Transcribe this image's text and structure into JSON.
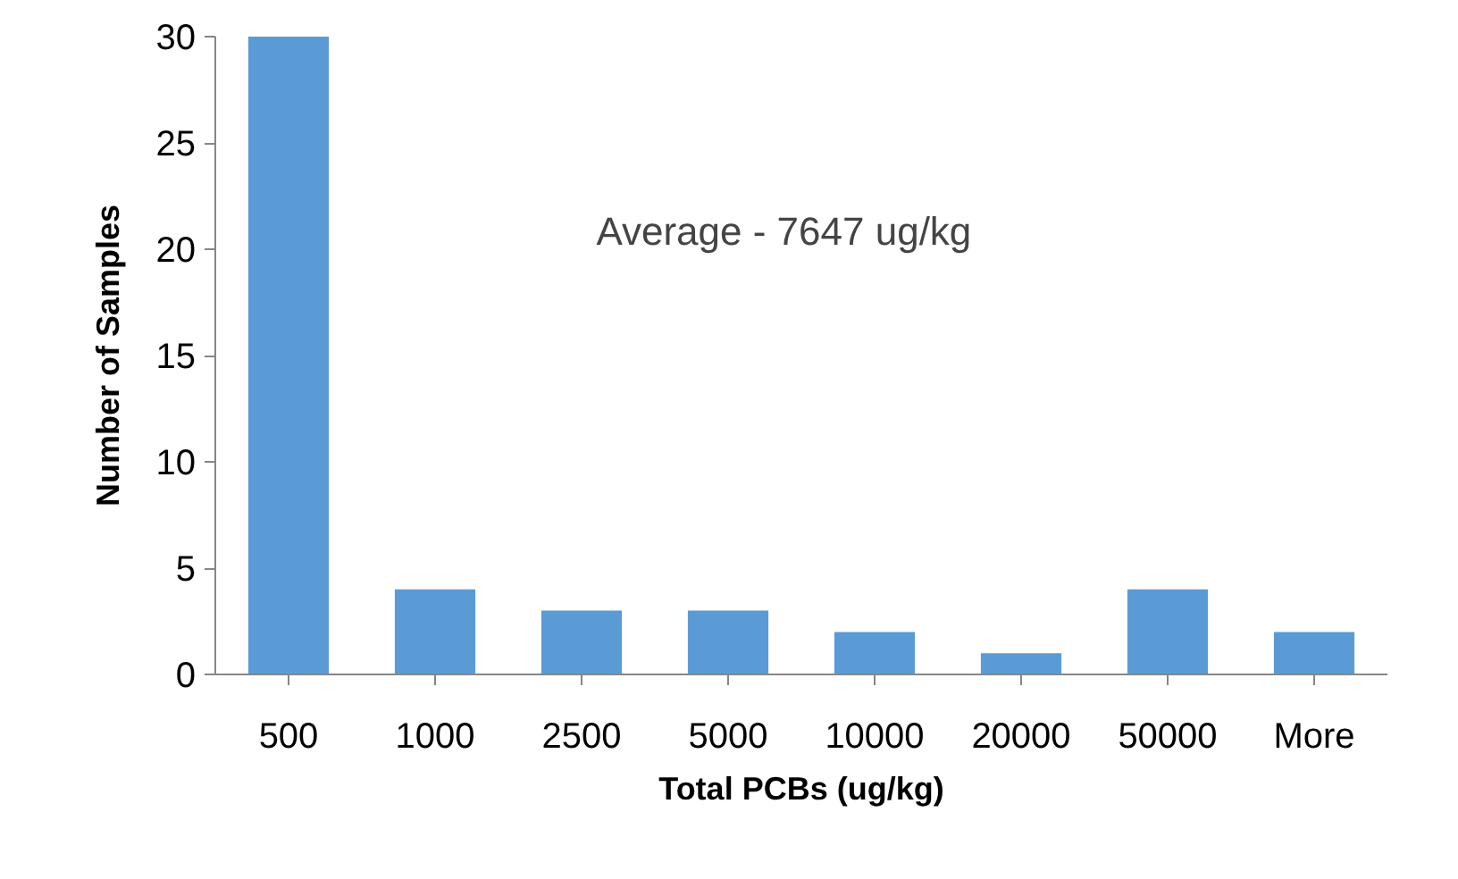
{
  "chart_data": {
    "type": "bar",
    "xlabel": "Total PCBs (ug/kg)",
    "ylabel": "Number of Samples",
    "categories": [
      "500",
      "1000",
      "2500",
      "5000",
      "10000",
      "20000",
      "50000",
      "More"
    ],
    "values": [
      30,
      4,
      3,
      3,
      2,
      1,
      4,
      2
    ],
    "color": "#5b9bd5",
    "ylim": [
      0,
      30
    ],
    "yticks": [
      0,
      5,
      10,
      15,
      20,
      25,
      30
    ],
    "grid": false,
    "annotations": [
      "Average - 7647 ug/kg"
    ]
  }
}
